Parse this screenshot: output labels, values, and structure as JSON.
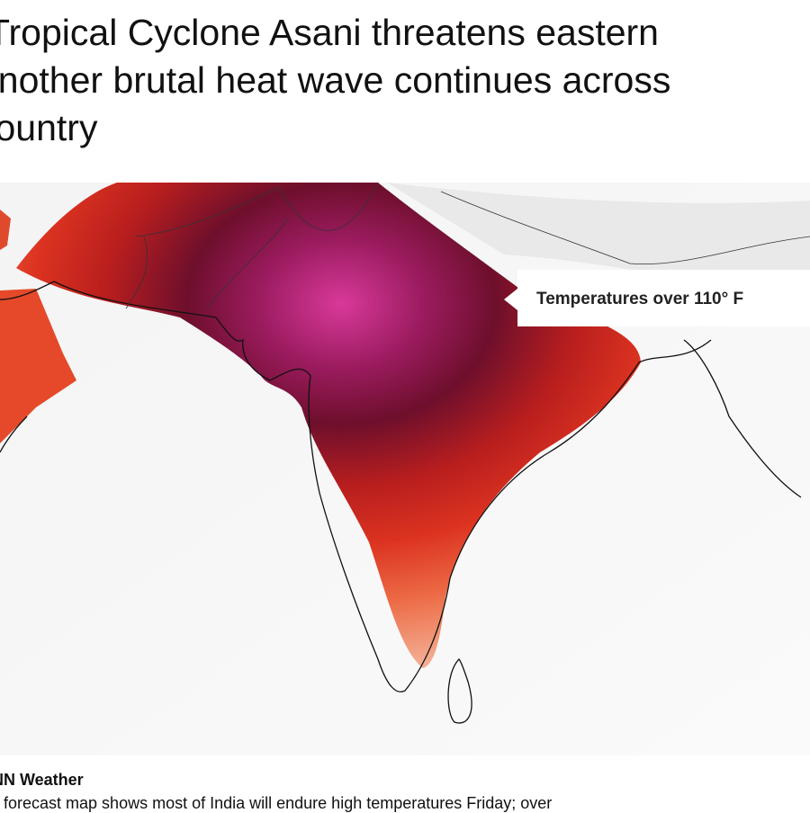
{
  "headline": {
    "lines": [
      "Tropical Cyclone Asani threatens eastern",
      "another brutal heat wave continues across",
      "country"
    ]
  },
  "map": {
    "label": "Temperatures over 110° F"
  },
  "caption": {
    "credit": "CNN Weather",
    "text": "A forecast map shows most of India will endure high temperatures Friday; over"
  }
}
